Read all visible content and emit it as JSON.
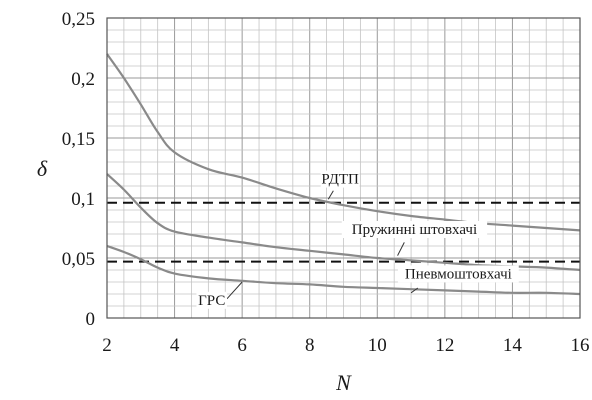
{
  "chart_data": {
    "type": "line",
    "xlabel": "N",
    "ylabel": "δ",
    "xlim": [
      2,
      16
    ],
    "ylim": [
      0,
      0.25
    ],
    "x_ticks": [
      "2",
      "4",
      "6",
      "8",
      "10",
      "12",
      "14",
      "16"
    ],
    "y_ticks": [
      "0",
      "0,05",
      "0,1",
      "0,15",
      "0,2",
      "0,25"
    ],
    "grid": true,
    "series": [
      {
        "name": "РДТП",
        "x": [
          2,
          2.5,
          3,
          3.5,
          4,
          5,
          6,
          7,
          8,
          9,
          10,
          11,
          12,
          13,
          14,
          15,
          16
        ],
        "y": [
          0.22,
          0.2,
          0.178,
          0.155,
          0.138,
          0.124,
          0.117,
          0.108,
          0.1,
          0.094,
          0.089,
          0.085,
          0.082,
          0.079,
          0.077,
          0.075,
          0.073
        ]
      },
      {
        "name": "Пружинні штовхачі",
        "x": [
          2,
          2.5,
          3,
          3.5,
          4,
          5,
          6,
          7,
          8,
          9,
          10,
          11,
          12,
          13,
          14,
          15,
          16
        ],
        "y": [
          0.12,
          0.107,
          0.092,
          0.079,
          0.072,
          0.067,
          0.063,
          0.059,
          0.056,
          0.053,
          0.05,
          0.048,
          0.046,
          0.044,
          0.043,
          0.042,
          0.04
        ]
      },
      {
        "name": "Пневмоштовхачі",
        "x": [
          2,
          2.5,
          3,
          3.5,
          4,
          5,
          6,
          7,
          8,
          9,
          10,
          11,
          12,
          13,
          14,
          15,
          16
        ],
        "y": [
          0.06,
          0.055,
          0.049,
          0.042,
          0.037,
          0.033,
          0.031,
          0.029,
          0.028,
          0.026,
          0.025,
          0.024,
          0.023,
          0.022,
          0.021,
          0.021,
          0.02
        ]
      }
    ],
    "reference_lines": [
      0.096,
      0.047
    ],
    "annotations": [
      "РДТП",
      "Пружинні штовхачі",
      "Пневмоштовхачі",
      "ГРС"
    ]
  }
}
